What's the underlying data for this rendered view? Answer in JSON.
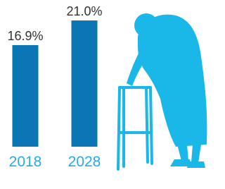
{
  "chart_data": {
    "type": "bar",
    "categories": [
      "2018",
      "2028"
    ],
    "values": [
      16.9,
      21.0
    ],
    "value_labels": [
      "16.9%",
      "21.0%"
    ],
    "color": "#0a76b4",
    "label_color": "#29abe2"
  }
}
